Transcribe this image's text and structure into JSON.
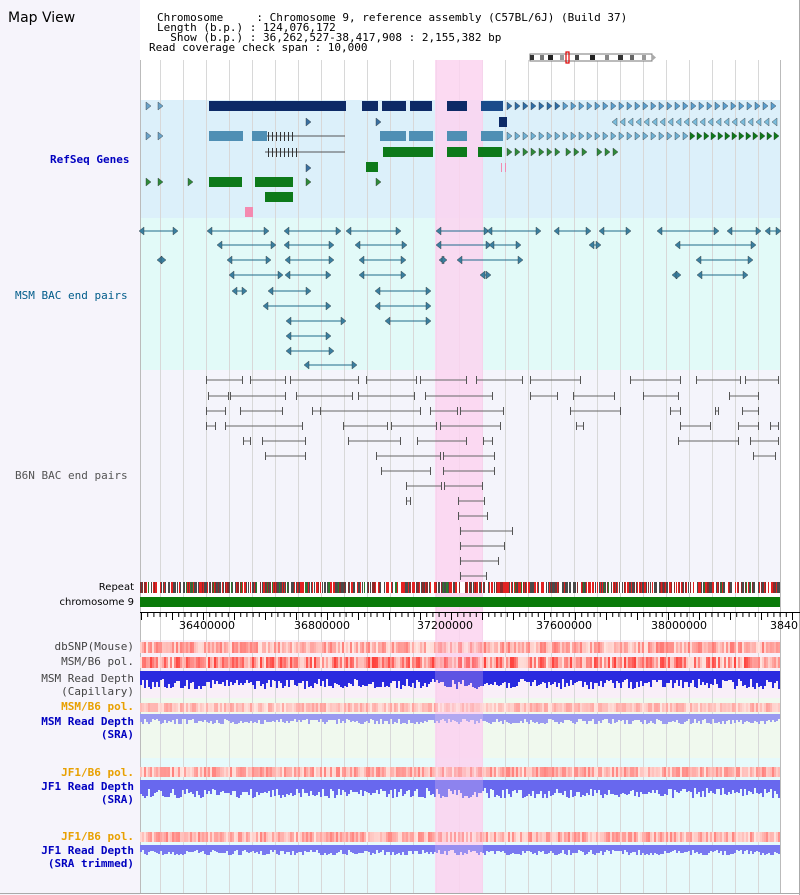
{
  "title": "Map View",
  "header": {
    "lines": [
      "Chromosome     : Chromosome 9, reference assembly (C57BL/6J) (Build 37)",
      "Length (b.p.) : 124,076,172",
      "  Show (b.p.) : 36,262,527-38,417,908 : 2,155,382 bp",
      "Read coverage check span : 10,000"
    ]
  },
  "tracks": {
    "refseq": "RefSeq Genes",
    "msm_bac": "MSM BAC end pairs",
    "b6n_bac": "B6N BAC end pairs",
    "repeat": "Repeat",
    "chromosome": "chromosome 9",
    "dbsnp": "dbSNP(Mouse)",
    "msm_b6_pol": "MSM/B6 pol.",
    "msm_depth_cap_1": "MSM Read Depth",
    "msm_depth_cap_2": "(Capillary)",
    "msm_b6_pol2": "MSM/B6 pol.",
    "msm_depth_sra_1": "MSM Read Depth",
    "msm_depth_sra_2": "(SRA)",
    "jf1_b6_pol": "JF1/B6 pol.",
    "jf1_depth_sra_1": "JF1 Read Depth",
    "jf1_depth_sra_2": "(SRA)",
    "jf1_b6_pol2": "JF1/B6 pol.",
    "jf1_depth_trim_1": "JF1 Read Depth",
    "jf1_depth_trim_2": "(SRA trimmed)"
  },
  "axis": {
    "ticks": [
      "36400000",
      "36800000",
      "37200000",
      "37600000",
      "38000000",
      "3840"
    ]
  },
  "colors": {
    "refseq_label": "#0000c0",
    "msm_bac_label": "#005c8a",
    "b6n_label": "#555555",
    "pol_label": "#e8a000",
    "depth_label": "#0000c0",
    "highlight": "#fbd3f0",
    "refseq_bg": "#dcf0fa",
    "msm_bg": "#e2faf8",
    "b6n_bg": "#f4f4fb",
    "chromosome": "#0a7a0a"
  }
}
